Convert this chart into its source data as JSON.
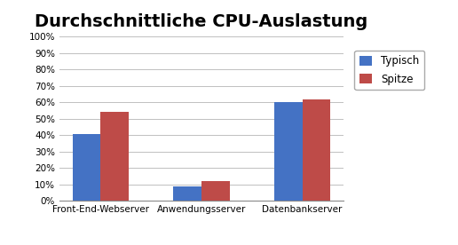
{
  "title": "Durchschnittliche CPU-Auslastung",
  "categories": [
    "Front-End-Webserver",
    "Anwendungsserver",
    "Datenbankserver"
  ],
  "series": [
    {
      "label": "Typisch",
      "values": [
        0.41,
        0.09,
        0.6
      ],
      "color": "#4472C4"
    },
    {
      "label": "Spitze",
      "values": [
        0.54,
        0.12,
        0.62
      ],
      "color": "#BE4B48"
    }
  ],
  "ylim": [
    0,
    1.0
  ],
  "yticks": [
    0.0,
    0.1,
    0.2,
    0.3,
    0.4,
    0.5,
    0.6,
    0.7,
    0.8,
    0.9,
    1.0
  ],
  "background_color": "#FFFFFF",
  "plot_bg_color": "#FFFFFF",
  "grid_color": "#C0C0C0",
  "bar_width": 0.28,
  "title_fontsize": 14,
  "tick_fontsize": 7.5,
  "legend_fontsize": 8.5
}
